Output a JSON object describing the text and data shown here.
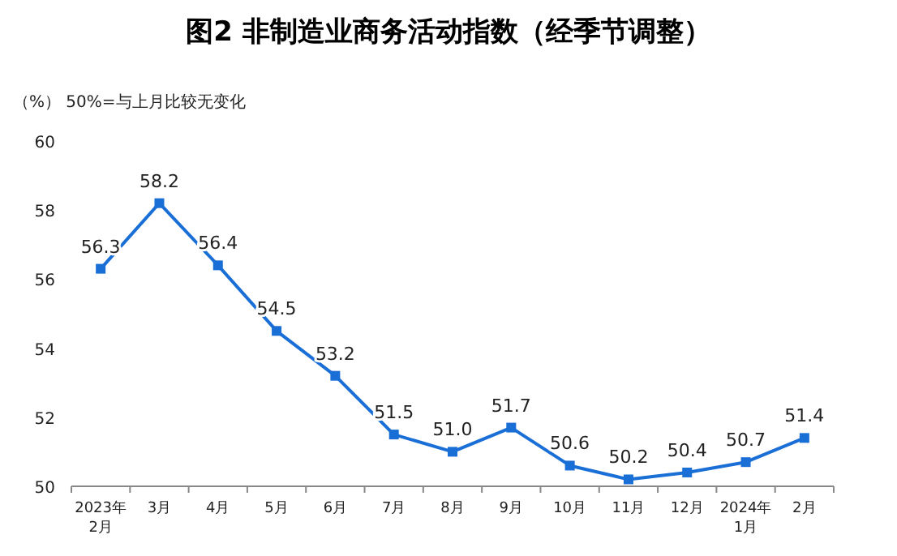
{
  "chart_data": {
    "type": "line",
    "title": "图2  非制造业商务活动指数（经季节调整）",
    "annotations": [
      "（%）  50%=与上月比较无变化"
    ],
    "categories": [
      "2023年\n2月",
      "3月",
      "4月",
      "5月",
      "6月",
      "7月",
      "8月",
      "9月",
      "10月",
      "11月",
      "12月",
      "2024年\n1月",
      "2月"
    ],
    "series": [
      {
        "color": "#1a6fd6",
        "values": [
          56.3,
          58.2,
          56.4,
          54.5,
          53.2,
          51.5,
          51.0,
          51.7,
          50.6,
          50.2,
          50.4,
          50.7,
          51.4
        ],
        "value_labels": [
          "56.3",
          "58.2",
          "56.4",
          "54.5",
          "53.2",
          "51.5",
          "51.0",
          "51.7",
          "50.6",
          "50.2",
          "50.4",
          "50.7",
          "51.4"
        ]
      }
    ],
    "ylim": [
      50,
      60
    ],
    "yticks": [
      50,
      52,
      54,
      56,
      58,
      60
    ],
    "marker": "square",
    "grid": false
  }
}
